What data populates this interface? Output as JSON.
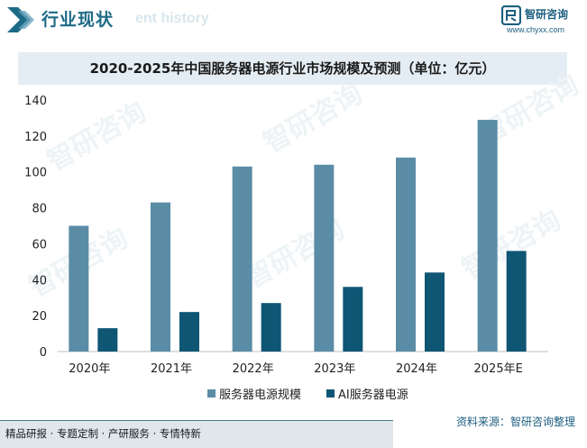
{
  "header": {
    "title": "行业现状",
    "ghost_text": "ent history",
    "logo_name": "智研咨询",
    "logo_url": "www.chyxx.com"
  },
  "chart_data": {
    "type": "bar",
    "title": "2020-2025年中国服务器电源行业市场规模及预测（单位：亿元）",
    "categories": [
      "2020年",
      "2021年",
      "2022年",
      "2023年",
      "2024年",
      "2025年E"
    ],
    "series": [
      {
        "name": "服务器电源规模",
        "values": [
          70,
          83,
          103,
          104,
          108,
          129
        ],
        "color": "#5a8ca6"
      },
      {
        "name": "AI服务器电源",
        "values": [
          13,
          22,
          27,
          36,
          44,
          56
        ],
        "color": "#0f5674"
      }
    ],
    "ylim": [
      0,
      140
    ],
    "yticks": [
      "0",
      "20",
      "40",
      "60",
      "80",
      "100",
      "120",
      "140"
    ],
    "legend": "bottom",
    "grid": false
  },
  "watermark": "智研咨询",
  "footer": {
    "left": "精品研报 · 专题定制 · 产研服务 · 专情特新",
    "source": "资料来源：智研咨询整理"
  },
  "colors": {
    "accent": "#1d6a86",
    "title_bg": "#e4edf3"
  }
}
